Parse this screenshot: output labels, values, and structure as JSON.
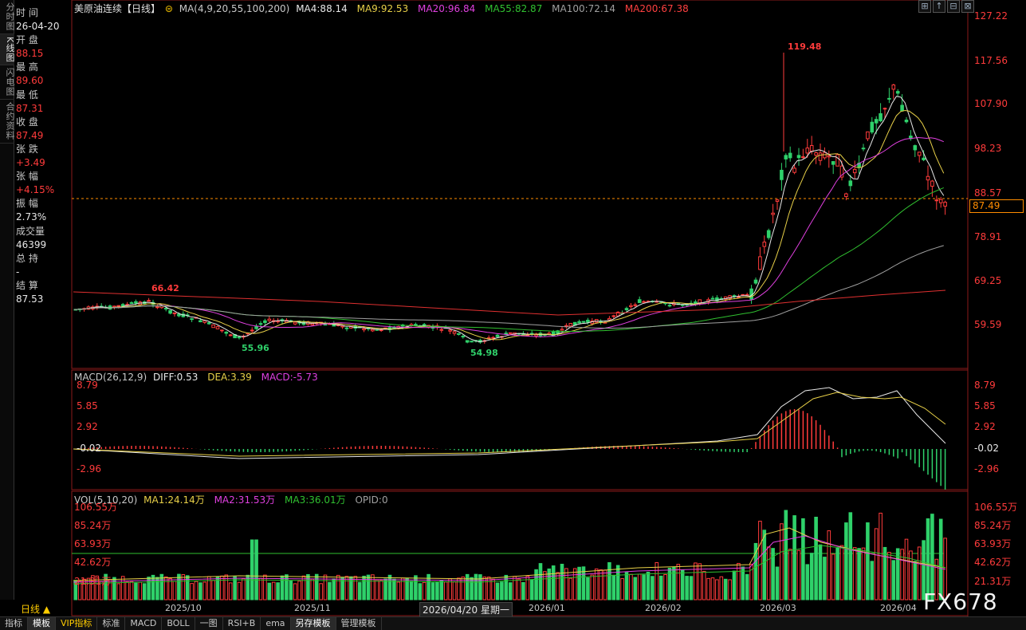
{
  "vtabs": [
    "分时图",
    "K线图",
    "闪电图",
    "合约资料"
  ],
  "info": {
    "time_label": "时 间",
    "time": "26-04-20",
    "open_label": "开 盘",
    "open": "88.15",
    "high_label": "最 高",
    "high": "89.60",
    "low_label": "最 低",
    "low": "87.31",
    "close_label": "收 盘",
    "close": "87.49",
    "change_label": "张 跌",
    "change": "+3.49",
    "pct_label": "张 幅",
    "pct": "+4.15%",
    "amp_label": "振 幅",
    "amp": "2.73%",
    "vol_label": "成交量",
    "vol": "46399",
    "oi_label": "总 持",
    "oi": "-",
    "settle_label": "结 算",
    "settle": "87.53"
  },
  "main_header": {
    "name": "美原油连续【日线】",
    "ma_params": "MA(4,9,20,55,100,200)",
    "ma4": "MA4:88.14",
    "ma9": "MA9:92.53",
    "ma20": "MA20:96.84",
    "ma55": "MA55:82.87",
    "ma100": "MA100:72.14",
    "ma200": "MA200:67.38"
  },
  "macd_header": {
    "params": "MACD(26,12,9)",
    "diff": "DIFF:0.53",
    "dea": "DEA:3.39",
    "macd": "MACD:-5.73"
  },
  "vol_header": {
    "params": "VOL(5,10,20)",
    "ma1": "MA1:24.14万",
    "ma2": "MA2:31.53万",
    "ma3": "MA3:36.01万",
    "opid": "OPID:0"
  },
  "price_axis": [
    "127.22",
    "117.56",
    "107.90",
    "98.23",
    "88.57",
    "78.91",
    "69.25",
    "59.59"
  ],
  "macd_axis": [
    "8.79",
    "5.85",
    "2.92",
    "-0.02",
    "-2.96"
  ],
  "vol_axis": [
    "106.55万",
    "85.24万",
    "63.93万",
    "42.62万",
    "21.31万"
  ],
  "x_labels": [
    "2025/10",
    "2025/11",
    "2026/01",
    "2026/02",
    "2026/03",
    "2026/04"
  ],
  "annotations": {
    "high": "119.48",
    "low1": "55.96",
    "low2": "54.98",
    "ma_left": "66.42"
  },
  "current_price": "87.49",
  "period_button": "日线 ▲",
  "date_badge": "2026/04/20 星期一",
  "watermark": "FX678",
  "tool_icons": [
    "⊞",
    "↑",
    "⊟",
    "⊠"
  ],
  "bottom_tabs": [
    "指标",
    "模板",
    "VIP指标",
    "标准",
    "MACD",
    "BOLL",
    "一图",
    "RSI+B",
    "ema",
    "另存模板",
    "管理模板"
  ],
  "colors": {
    "up": "#ff3b3b",
    "down": "#2fd16a",
    "ma4": "#e8e8e8",
    "ma9": "#e8d048",
    "ma20": "#e040e0",
    "ma55": "#30c030",
    "ma100": "#a0a0a0",
    "ma200": "#e03030"
  }
}
